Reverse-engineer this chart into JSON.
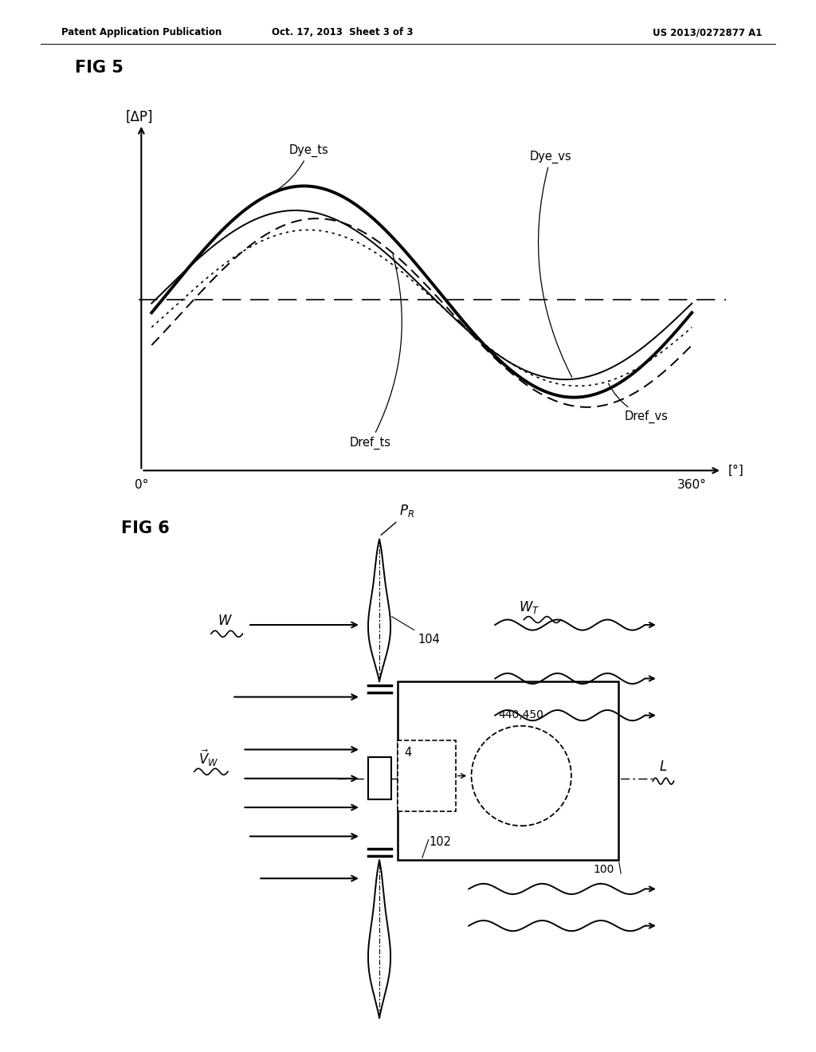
{
  "header_left": "Patent Application Publication",
  "header_center": "Oct. 17, 2013  Sheet 3 of 3",
  "header_right": "US 2013/0272877 A1",
  "fig5_label": "FIG 5",
  "fig6_label": "FIG 6",
  "ylabel_fig5": "[ΔP]",
  "xlabel_fig5_start": "0°",
  "xlabel_fig5_end": "360°",
  "xlabel_fig5_unit": "[°]",
  "background_color": "#ffffff"
}
